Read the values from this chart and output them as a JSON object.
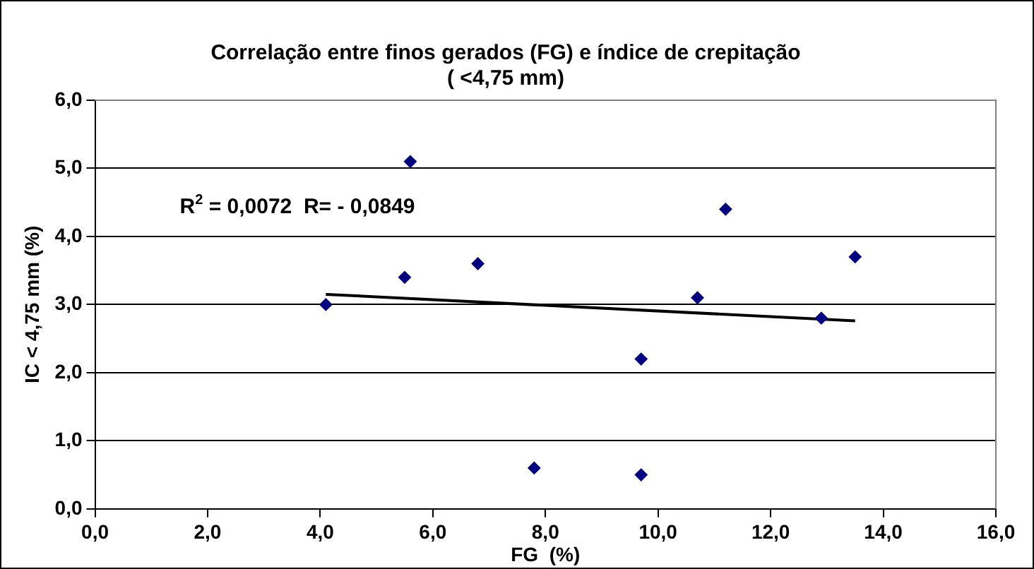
{
  "chart_data": {
    "type": "scatter",
    "title": "Correlação entre finos gerados (FG) e índice de crepitação\n( <4,75 mm)",
    "xlabel": "FG  (%)",
    "ylabel": "IC < 4,75 mm (%)",
    "series": [
      {
        "color": "#000080",
        "marker": "diamond",
        "x": [
          4.1,
          5.5,
          5.6,
          6.8,
          7.8,
          9.7,
          9.7,
          10.7,
          11.2,
          12.9,
          13.5
        ],
        "values": [
          3.0,
          3.4,
          5.1,
          3.6,
          0.6,
          2.2,
          0.5,
          3.1,
          4.4,
          2.8,
          3.7
        ]
      },
      {
        "type": "line",
        "marker": "none",
        "color": "#000000",
        "x": [
          4.1,
          13.5
        ],
        "values": [
          3.15,
          2.76
        ]
      }
    ],
    "xlim": [
      0,
      16
    ],
    "xticks": [
      {
        "value": 0,
        "label": "0,0"
      },
      {
        "value": 2,
        "label": "2,0"
      },
      {
        "value": 4,
        "label": "4,0"
      },
      {
        "value": 6,
        "label": "6,0"
      },
      {
        "value": 8,
        "label": "8,0"
      },
      {
        "value": 10,
        "label": "10,0"
      },
      {
        "value": 12,
        "label": "12,0"
      },
      {
        "value": 14,
        "label": "14,0"
      },
      {
        "value": 16,
        "label": "16,0"
      }
    ],
    "ylim": [
      0,
      6
    ],
    "yticks": [
      {
        "value": 0,
        "label": "0,0"
      },
      {
        "value": 1,
        "label": "1,0"
      },
      {
        "value": 2,
        "label": "2,0"
      },
      {
        "value": 3,
        "label": "3,0"
      },
      {
        "value": 4,
        "label": "4,0"
      },
      {
        "value": 5,
        "label": "5,0"
      },
      {
        "value": 6,
        "label": "6,0"
      }
    ],
    "annotations": [
      "R$^{2}$ = 0,0072  R= - 0,0849"
    ],
    "grid": "y",
    "legend": false,
    "line_style": "solid"
  }
}
